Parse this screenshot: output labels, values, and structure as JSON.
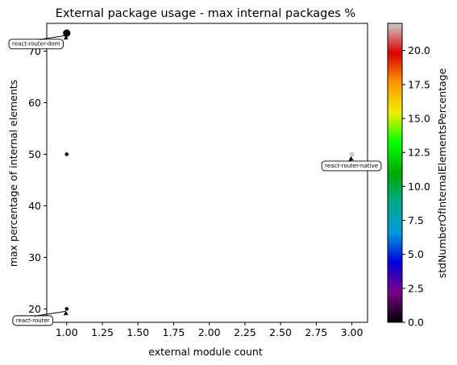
{
  "chart_data": {
    "type": "scatter",
    "title": "External package usage - max internal packages %",
    "xlabel": "external module count",
    "ylabel": "max percentage of internal elements",
    "xlim": [
      0.86,
      3.11
    ],
    "ylim": [
      17.4,
      75.4
    ],
    "xticks": [
      1.0,
      1.25,
      1.5,
      1.75,
      2.0,
      2.25,
      2.5,
      2.75,
      3.0
    ],
    "xtick_labels": [
      "1.00",
      "1.25",
      "1.50",
      "1.75",
      "2.00",
      "2.25",
      "2.50",
      "2.75",
      "3.00"
    ],
    "yticks": [
      20,
      30,
      40,
      50,
      60,
      70
    ],
    "ytick_labels": [
      "20",
      "30",
      "40",
      "50",
      "60",
      "70"
    ],
    "grid": false,
    "points": [
      {
        "x": 1.0,
        "y": 73.5,
        "color_value": 0.0,
        "size": "large"
      },
      {
        "x": 1.0,
        "y": 50.0,
        "color_value": 0.0,
        "size": "small"
      },
      {
        "x": 1.0,
        "y": 20.0,
        "color_value": 0.0,
        "size": "small"
      },
      {
        "x": 3.0,
        "y": 50.0,
        "color_value": 22.0,
        "size": "medium"
      }
    ],
    "annotations": [
      {
        "text": "react-router-dom",
        "x": 1.0,
        "y": 73.5
      },
      {
        "text": "react-router-native",
        "x": 3.0,
        "y": 50.0
      },
      {
        "text": "react-router",
        "x": 1.0,
        "y": 20.0
      }
    ],
    "colorbar": {
      "label": "stdNumberOfInternalElementsPercentage",
      "colormap": "nipy_spectral",
      "range": [
        0,
        22
      ],
      "ticks": [
        0.0,
        2.5,
        5.0,
        7.5,
        10.0,
        12.5,
        15.0,
        17.5,
        20.0
      ],
      "tick_labels": [
        "0.0",
        "2.5",
        "5.0",
        "7.5",
        "10.0",
        "12.5",
        "15.0",
        "17.5",
        "20.0"
      ]
    }
  }
}
